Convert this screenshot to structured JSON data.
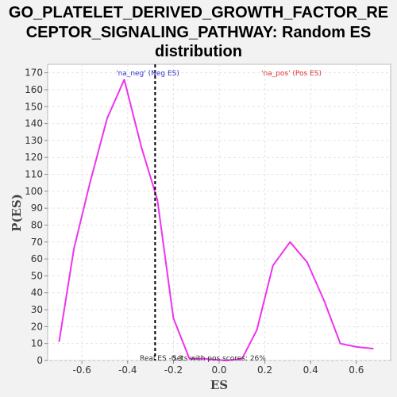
{
  "chart_data": {
    "type": "line",
    "title_lines": [
      "GO_PLATELET_DERIVED_GROWTH_FACTOR_RE",
      "CEPTOR_SIGNALING_PATHWAY: Random ES",
      "distribution"
    ],
    "xlabel": "ES",
    "ylabel": "P(ES)",
    "xlim": [
      -0.75,
      0.75
    ],
    "ylim": [
      0,
      175
    ],
    "xticks": [
      -0.6,
      -0.4,
      -0.2,
      0.0,
      0.2,
      0.4,
      0.6
    ],
    "xtick_labels": [
      "-0.6",
      "-0.4",
      "-0.2",
      "0.0",
      "0.2",
      "0.4",
      "0.6"
    ],
    "yticks": [
      0,
      10,
      20,
      30,
      40,
      50,
      60,
      70,
      80,
      90,
      100,
      110,
      120,
      130,
      140,
      150,
      160,
      170
    ],
    "grid": true,
    "series": [
      {
        "color": "#ee33ee",
        "x": [
          -0.7,
          -0.635,
          -0.565,
          -0.49,
          -0.415,
          -0.34,
          -0.27,
          -0.2,
          -0.13,
          -0.06,
          0.03,
          0.1,
          0.165,
          0.235,
          0.31,
          0.385,
          0.46,
          0.53,
          0.6,
          0.675
        ],
        "y": [
          11,
          66,
          105,
          143,
          166,
          126,
          95,
          25,
          1,
          1,
          0,
          1,
          18,
          56,
          70,
          58,
          35,
          10,
          8,
          7
        ]
      }
    ],
    "real_es_line": {
      "x": -0.28,
      "style": "dashed",
      "color": "#000000"
    },
    "annotations": {
      "neg_label": "'na_neg' (Neg ES)",
      "neg_color": "#3333cc",
      "pos_label": "'na_pos' (Pos ES)",
      "pos_color": "#dd3333",
      "real_es_text": "Real ES -0.3",
      "pos_scores_text": "Sets with pos scores: 26%"
    }
  }
}
